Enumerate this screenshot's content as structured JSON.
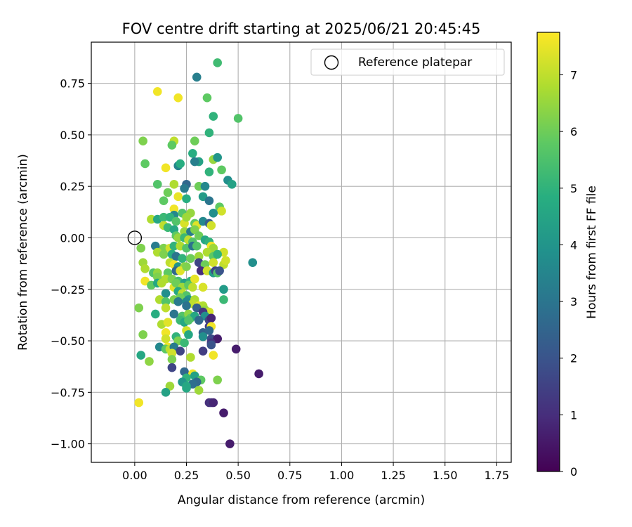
{
  "chart_data": {
    "type": "scatter",
    "title": "FOV centre drift starting at 2025/06/21 20:45:45",
    "xlabel": "Angular distance from reference (arcmin)",
    "ylabel": "Rotation from reference (arcmin)",
    "xlim": [
      -0.21,
      1.82
    ],
    "ylim": [
      -1.09,
      0.95
    ],
    "xticks": [
      "0.00",
      "0.25",
      "0.50",
      "0.75",
      "1.00",
      "1.25",
      "1.50",
      "1.75"
    ],
    "xtick_values": [
      0,
      0.25,
      0.5,
      0.75,
      1.0,
      1.25,
      1.5,
      1.75
    ],
    "yticks": [
      "0.75",
      "0.50",
      "0.25",
      "0.00",
      "−0.25",
      "−0.50",
      "−0.75",
      "−1.00"
    ],
    "ytick_values": [
      0.75,
      0.5,
      0.25,
      0,
      -0.25,
      -0.5,
      -0.75,
      -1.0
    ],
    "grid": true,
    "legend": {
      "placement": "top-right",
      "entries": [
        {
          "label": "Reference platepar",
          "marker": "open-circle",
          "x": 0,
          "y": 0
        }
      ]
    },
    "colorbar": {
      "label": "Hours from first FF file",
      "colormap": "viridis",
      "range": [
        0,
        7.75
      ],
      "ticks": [
        "0",
        "1",
        "2",
        "3",
        "4",
        "5",
        "6",
        "7"
      ],
      "tick_values": [
        0,
        1,
        2,
        3,
        4,
        5,
        6,
        7
      ]
    },
    "points": [
      [
        0.4,
        0.85,
        5.3
      ],
      [
        0.3,
        0.78,
        3.3
      ],
      [
        0.11,
        0.71,
        7.6
      ],
      [
        0.21,
        0.68,
        7.6
      ],
      [
        0.35,
        0.68,
        5.8
      ],
      [
        0.38,
        0.59,
        5.0
      ],
      [
        0.5,
        0.58,
        5.6
      ],
      [
        0.36,
        0.51,
        5.0
      ],
      [
        0.04,
        0.47,
        6.2
      ],
      [
        0.19,
        0.47,
        7.0
      ],
      [
        0.29,
        0.47,
        6.0
      ],
      [
        0.18,
        0.45,
        5.8
      ],
      [
        0.28,
        0.41,
        4.8
      ],
      [
        0.38,
        0.38,
        6.5
      ],
      [
        0.4,
        0.39,
        4.0
      ],
      [
        0.31,
        0.37,
        4.4
      ],
      [
        0.29,
        0.37,
        3.3
      ],
      [
        0.05,
        0.36,
        5.8
      ],
      [
        0.15,
        0.34,
        7.6
      ],
      [
        0.21,
        0.35,
        3.5
      ],
      [
        0.22,
        0.36,
        4.8
      ],
      [
        0.42,
        0.33,
        5.8
      ],
      [
        0.36,
        0.32,
        5.0
      ],
      [
        0.45,
        0.28,
        3.8
      ],
      [
        0.47,
        0.26,
        4.4
      ],
      [
        0.11,
        0.26,
        5.6
      ],
      [
        0.19,
        0.26,
        6.8
      ],
      [
        0.25,
        0.26,
        2.6
      ],
      [
        0.24,
        0.24,
        3.2
      ],
      [
        0.31,
        0.25,
        6.0
      ],
      [
        0.34,
        0.25,
        3.6
      ],
      [
        0.16,
        0.22,
        6.0
      ],
      [
        0.21,
        0.2,
        7.5
      ],
      [
        0.14,
        0.18,
        5.8
      ],
      [
        0.33,
        0.2,
        4.2
      ],
      [
        0.36,
        0.18,
        3.0
      ],
      [
        0.25,
        0.19,
        4.8
      ],
      [
        0.41,
        0.15,
        5.8
      ],
      [
        0.42,
        0.13,
        7.2
      ],
      [
        0.19,
        0.14,
        7.6
      ],
      [
        0.38,
        0.12,
        3.8
      ],
      [
        0.19,
        0.11,
        3.6
      ],
      [
        0.23,
        0.12,
        5.6
      ],
      [
        0.27,
        0.12,
        6.5
      ],
      [
        0.08,
        0.09,
        6.8
      ],
      [
        0.11,
        0.09,
        4.6
      ],
      [
        0.14,
        0.1,
        5.2
      ],
      [
        0.17,
        0.1,
        5.0
      ],
      [
        0.2,
        0.08,
        5.6
      ],
      [
        0.24,
        0.07,
        7.3
      ],
      [
        0.25,
        0.1,
        6.6
      ],
      [
        0.29,
        0.07,
        5.8
      ],
      [
        0.3,
        0.06,
        7.4
      ],
      [
        0.33,
        0.08,
        3.6
      ],
      [
        0.36,
        0.07,
        2.3
      ],
      [
        0.37,
        0.06,
        7.2
      ],
      [
        0.14,
        0.06,
        7.0
      ],
      [
        0.16,
        0.05,
        5.2
      ],
      [
        0.19,
        0.04,
        4.6
      ],
      [
        0.24,
        0.03,
        6.5
      ],
      [
        0.27,
        0.03,
        3.2
      ],
      [
        0.29,
        0.04,
        6.2
      ],
      [
        0.31,
        0.01,
        6.0
      ],
      [
        0.2,
        0.01,
        5.8
      ],
      [
        0.21,
        0.0,
        6.5
      ],
      [
        0.24,
        0.0,
        5.2
      ],
      [
        0.26,
        -0.01,
        7.0
      ],
      [
        0.28,
        -0.02,
        5.6
      ],
      [
        0.34,
        -0.01,
        4.6
      ],
      [
        0.36,
        -0.02,
        5.0
      ],
      [
        0.1,
        -0.04,
        3.2
      ],
      [
        0.14,
        -0.05,
        6.2
      ],
      [
        0.17,
        -0.05,
        7.2
      ],
      [
        0.19,
        -0.04,
        5.0
      ],
      [
        0.22,
        -0.04,
        6.8
      ],
      [
        0.25,
        -0.05,
        5.6
      ],
      [
        0.28,
        -0.04,
        2.9
      ],
      [
        0.3,
        -0.04,
        5.6
      ],
      [
        0.37,
        -0.04,
        7.6
      ],
      [
        0.38,
        -0.05,
        6.6
      ],
      [
        0.43,
        -0.07,
        7.2
      ],
      [
        0.03,
        -0.05,
        6.2
      ],
      [
        0.11,
        -0.07,
        6.8
      ],
      [
        0.14,
        -0.08,
        6.2
      ],
      [
        0.18,
        -0.08,
        4.8
      ],
      [
        0.2,
        -0.09,
        3.0
      ],
      [
        0.23,
        -0.1,
        5.0
      ],
      [
        0.27,
        -0.1,
        6.0
      ],
      [
        0.31,
        -0.09,
        6.6
      ],
      [
        0.35,
        -0.07,
        6.8
      ],
      [
        0.38,
        -0.09,
        5.8
      ],
      [
        0.4,
        -0.08,
        5.0
      ],
      [
        0.04,
        -0.12,
        6.6
      ],
      [
        0.17,
        -0.12,
        7.0
      ],
      [
        0.19,
        -0.13,
        7.6
      ],
      [
        0.21,
        -0.14,
        4.0
      ],
      [
        0.24,
        -0.14,
        6.5
      ],
      [
        0.31,
        -0.12,
        1.6
      ],
      [
        0.34,
        -0.13,
        6.0
      ],
      [
        0.38,
        -0.12,
        7.2
      ],
      [
        0.43,
        -0.13,
        7.0
      ],
      [
        0.44,
        -0.11,
        7.2
      ],
      [
        0.57,
        -0.12,
        3.8
      ],
      [
        0.05,
        -0.15,
        6.8
      ],
      [
        0.09,
        -0.17,
        5.6
      ],
      [
        0.11,
        -0.17,
        6.5
      ],
      [
        0.16,
        -0.17,
        5.8
      ],
      [
        0.2,
        -0.16,
        2.6
      ],
      [
        0.22,
        -0.16,
        7.4
      ],
      [
        0.25,
        -0.14,
        6.2
      ],
      [
        0.32,
        -0.16,
        1.0
      ],
      [
        0.35,
        -0.16,
        7.2
      ],
      [
        0.38,
        -0.17,
        4.2
      ],
      [
        0.39,
        -0.16,
        1.6
      ],
      [
        0.4,
        -0.17,
        5.6
      ],
      [
        0.41,
        -0.16,
        2.0
      ],
      [
        0.05,
        -0.21,
        7.6
      ],
      [
        0.11,
        -0.19,
        6.2
      ],
      [
        0.15,
        -0.2,
        6.8
      ],
      [
        0.18,
        -0.2,
        6.2
      ],
      [
        0.21,
        -0.21,
        5.4
      ],
      [
        0.24,
        -0.22,
        4.4
      ],
      [
        0.27,
        -0.21,
        5.0
      ],
      [
        0.29,
        -0.2,
        7.5
      ],
      [
        0.08,
        -0.23,
        5.8
      ],
      [
        0.11,
        -0.22,
        4.6
      ],
      [
        0.13,
        -0.22,
        6.8
      ],
      [
        0.19,
        -0.24,
        7.4
      ],
      [
        0.2,
        -0.22,
        6.0
      ],
      [
        0.23,
        -0.24,
        6.6
      ],
      [
        0.26,
        -0.23,
        5.8
      ],
      [
        0.28,
        -0.24,
        7.0
      ],
      [
        0.33,
        -0.24,
        7.3
      ],
      [
        0.43,
        -0.25,
        4.2
      ],
      [
        0.15,
        -0.27,
        3.8
      ],
      [
        0.21,
        -0.26,
        4.6
      ],
      [
        0.23,
        -0.27,
        7.0
      ],
      [
        0.25,
        -0.28,
        5.6
      ],
      [
        0.22,
        -0.29,
        6.0
      ],
      [
        0.26,
        -0.3,
        4.0
      ],
      [
        0.29,
        -0.3,
        6.8
      ],
      [
        0.43,
        -0.3,
        5.2
      ],
      [
        0.12,
        -0.3,
        6.8
      ],
      [
        0.15,
        -0.31,
        5.6
      ],
      [
        0.19,
        -0.3,
        6.2
      ],
      [
        0.21,
        -0.31,
        3.2
      ],
      [
        0.25,
        -0.31,
        3.6
      ],
      [
        0.28,
        -0.32,
        7.0
      ],
      [
        0.31,
        -0.33,
        7.6
      ],
      [
        0.33,
        -0.33,
        6.8
      ],
      [
        0.3,
        -0.34,
        2.3
      ],
      [
        0.02,
        -0.34,
        6.2
      ],
      [
        0.15,
        -0.34,
        7.0
      ],
      [
        0.25,
        -0.33,
        2.9
      ],
      [
        0.34,
        -0.35,
        6.5
      ],
      [
        0.36,
        -0.36,
        7.2
      ],
      [
        0.33,
        -0.36,
        1.2
      ],
      [
        0.1,
        -0.37,
        4.8
      ],
      [
        0.19,
        -0.37,
        3.0
      ],
      [
        0.23,
        -0.38,
        5.6
      ],
      [
        0.26,
        -0.37,
        6.4
      ],
      [
        0.27,
        -0.39,
        5.8
      ],
      [
        0.29,
        -0.38,
        4.6
      ],
      [
        0.34,
        -0.38,
        3.8
      ],
      [
        0.36,
        -0.4,
        1.6
      ],
      [
        0.37,
        -0.39,
        0.8
      ],
      [
        0.22,
        -0.4,
        5.2
      ],
      [
        0.24,
        -0.41,
        4.6
      ],
      [
        0.26,
        -0.4,
        5.6
      ],
      [
        0.13,
        -0.42,
        6.8
      ],
      [
        0.16,
        -0.41,
        7.4
      ],
      [
        0.31,
        -0.4,
        2.6
      ],
      [
        0.36,
        -0.43,
        1.4
      ],
      [
        0.37,
        -0.43,
        7.6
      ],
      [
        0.25,
        -0.45,
        7.2
      ],
      [
        0.33,
        -0.46,
        2.4
      ],
      [
        0.36,
        -0.45,
        2.6
      ],
      [
        0.15,
        -0.46,
        7.6
      ],
      [
        0.04,
        -0.47,
        6.2
      ],
      [
        0.2,
        -0.48,
        5.0
      ],
      [
        0.26,
        -0.47,
        4.6
      ],
      [
        0.15,
        -0.49,
        7.2
      ],
      [
        0.33,
        -0.48,
        3.8
      ],
      [
        0.37,
        -0.49,
        1.8
      ],
      [
        0.4,
        -0.49,
        0.6
      ],
      [
        0.21,
        -0.5,
        6.2
      ],
      [
        0.24,
        -0.51,
        5.2
      ],
      [
        0.37,
        -0.51,
        1.2
      ],
      [
        0.37,
        -0.52,
        2.0
      ],
      [
        0.12,
        -0.53,
        3.6
      ],
      [
        0.16,
        -0.53,
        7.6
      ],
      [
        0.15,
        -0.54,
        5.8
      ],
      [
        0.17,
        -0.54,
        7.0
      ],
      [
        0.19,
        -0.53,
        3.2
      ],
      [
        0.22,
        -0.55,
        1.6
      ],
      [
        0.33,
        -0.55,
        1.4
      ],
      [
        0.49,
        -0.54,
        0.6
      ],
      [
        0.03,
        -0.57,
        4.6
      ],
      [
        0.18,
        -0.56,
        7.2
      ],
      [
        0.27,
        -0.58,
        6.8
      ],
      [
        0.18,
        -0.59,
        6.2
      ],
      [
        0.38,
        -0.57,
        7.6
      ],
      [
        0.07,
        -0.6,
        6.4
      ],
      [
        0.18,
        -0.63,
        1.6
      ],
      [
        0.24,
        -0.65,
        2.6
      ],
      [
        0.28,
        -0.66,
        7.6
      ],
      [
        0.29,
        -0.67,
        4.4
      ],
      [
        0.25,
        -0.68,
        5.0
      ],
      [
        0.32,
        -0.69,
        5.8
      ],
      [
        0.3,
        -0.7,
        2.6
      ],
      [
        0.6,
        -0.66,
        0.6
      ],
      [
        0.23,
        -0.7,
        4.0
      ],
      [
        0.28,
        -0.71,
        2.8
      ],
      [
        0.4,
        -0.69,
        6.2
      ],
      [
        0.17,
        -0.72,
        6.6
      ],
      [
        0.25,
        -0.72,
        4.6
      ],
      [
        0.25,
        -0.73,
        4.6
      ],
      [
        0.31,
        -0.74,
        6.6
      ],
      [
        0.15,
        -0.75,
        4.4
      ],
      [
        0.02,
        -0.8,
        7.6
      ],
      [
        0.36,
        -0.8,
        1.0
      ],
      [
        0.37,
        -0.8,
        1.2
      ],
      [
        0.38,
        -0.8,
        0.8
      ],
      [
        0.43,
        -0.85,
        0.6
      ],
      [
        0.46,
        -1.0,
        0.6
      ]
    ]
  }
}
